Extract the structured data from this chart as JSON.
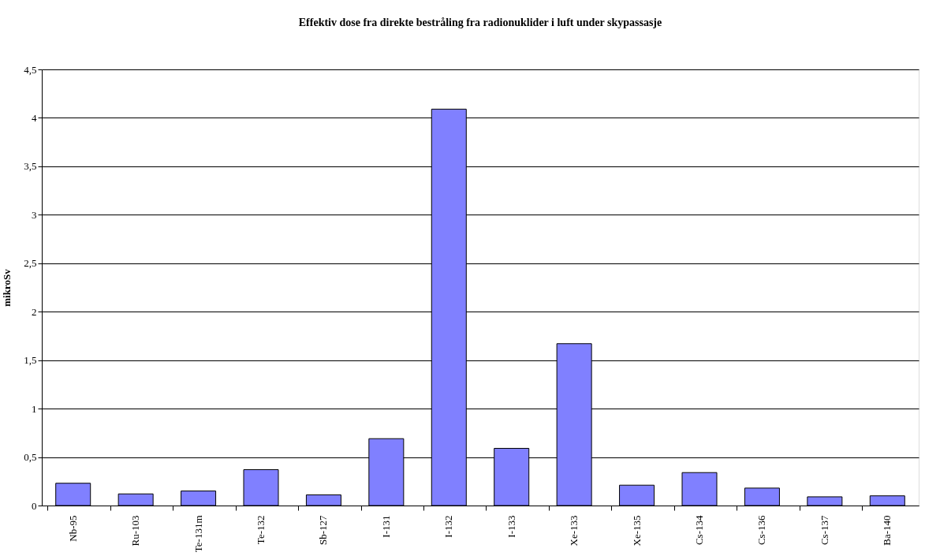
{
  "chart_data": {
    "type": "bar",
    "title": "Effektiv dose fra direkte bestråling fra radionuklider i luft under skypassasje",
    "ylabel": "mikroSv",
    "categories": [
      "Nb-95",
      "Ru-103",
      "Te-131m",
      "Te-132",
      "Sb-127",
      "I-131",
      "I-132",
      "I-133",
      "Xe-133",
      "Xe-135",
      "Cs-134",
      "Cs-136",
      "Cs-137",
      "Ba-140"
    ],
    "values": [
      0.23,
      0.12,
      0.15,
      0.37,
      0.11,
      0.69,
      4.09,
      0.59,
      1.67,
      0.21,
      0.34,
      0.18,
      0.09,
      0.1
    ],
    "color": "#8080ff",
    "ylim": [
      0,
      4.5
    ],
    "yticks": [
      0,
      {
        "value": 0.5,
        "label": "0,5"
      },
      1,
      {
        "value": 1.5,
        "label": "1,5"
      },
      2,
      {
        "value": 2.5,
        "label": "2,5"
      },
      3,
      {
        "value": 3.5,
        "label": "3,5"
      },
      4,
      {
        "value": 4.5,
        "label": "4,5"
      }
    ],
    "grid": "y"
  }
}
